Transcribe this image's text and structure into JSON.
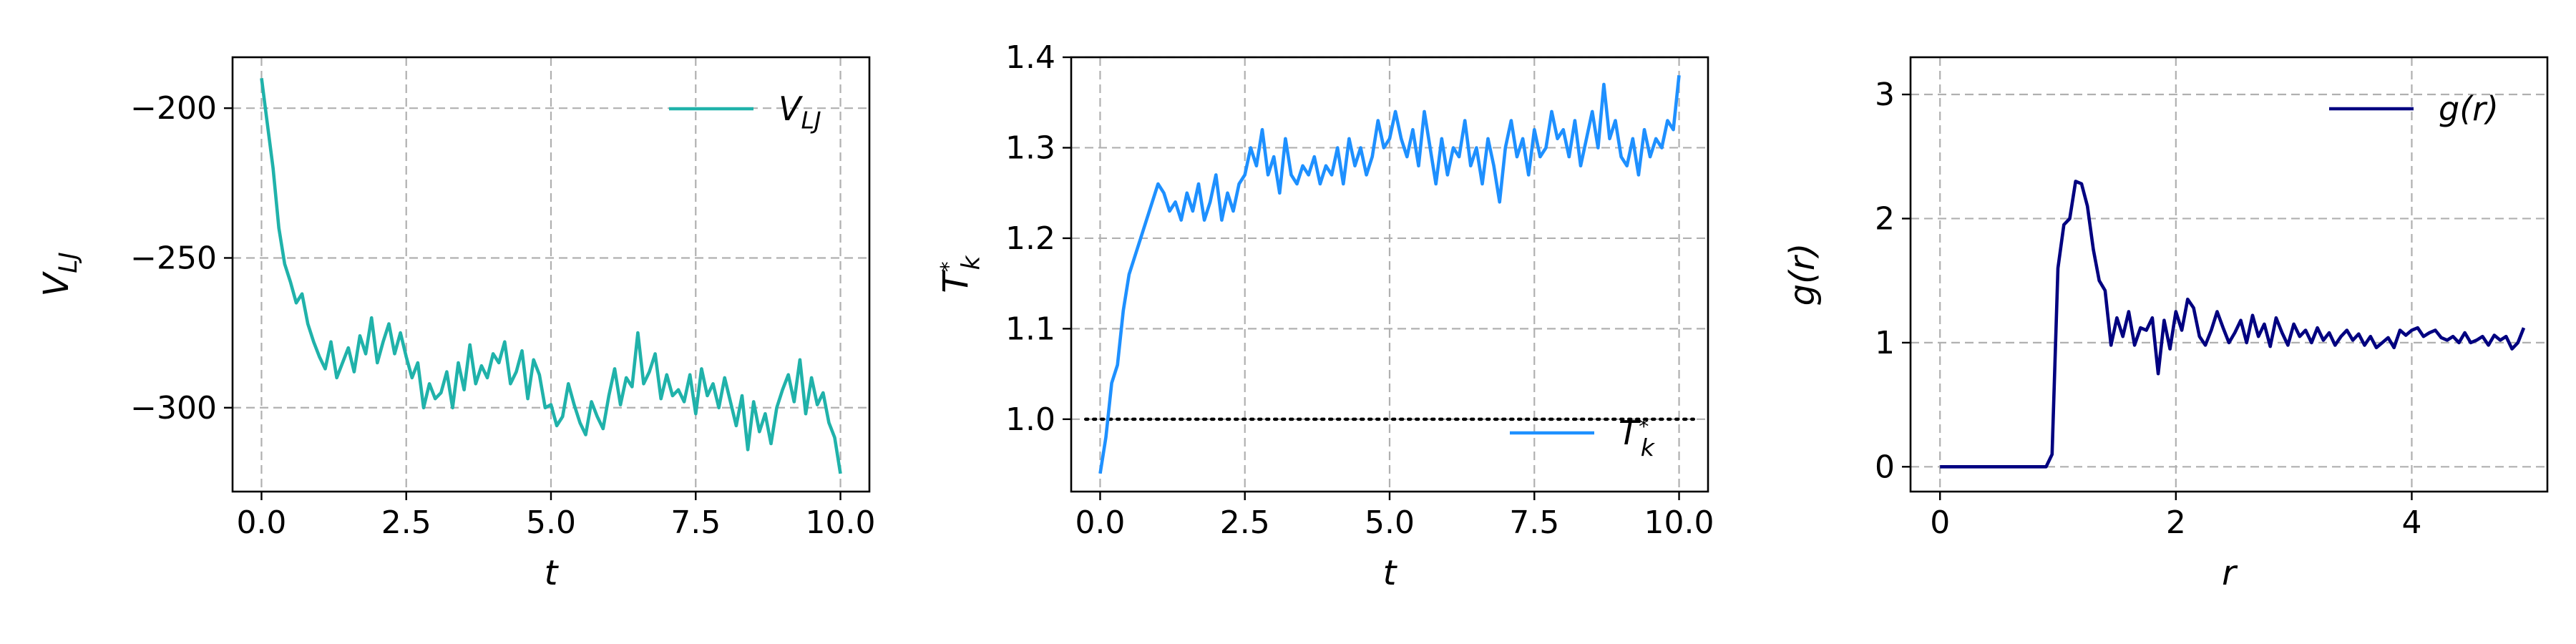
{
  "chart_data": [
    {
      "type": "line",
      "xlabel": "t",
      "ylabel": "V_LJ",
      "xlim": [
        -0.5,
        10.5
      ],
      "ylim": [
        -328,
        -183
      ],
      "xticks": [
        0.0,
        2.5,
        5.0,
        7.5,
        10.0
      ],
      "xtick_labels": [
        "0.0",
        "2.5",
        "5.0",
        "7.5",
        "10.0"
      ],
      "yticks": [
        -200,
        -250,
        -300
      ],
      "ytick_labels": [
        "−200",
        "−250",
        "−300"
      ],
      "grid": true,
      "legend": "top-right",
      "series": [
        {
          "name": "V_LJ",
          "color": "#20b2aa",
          "x": [
            0.0,
            0.1,
            0.2,
            0.3,
            0.4,
            0.5,
            0.6,
            0.7,
            0.8,
            0.9,
            1.0,
            1.1,
            1.2,
            1.3,
            1.4,
            1.5,
            1.6,
            1.7,
            1.8,
            1.9,
            2.0,
            2.1,
            2.2,
            2.3,
            2.4,
            2.5,
            2.6,
            2.7,
            2.8,
            2.9,
            3.0,
            3.1,
            3.2,
            3.3,
            3.4,
            3.5,
            3.6,
            3.7,
            3.8,
            3.9,
            4.0,
            4.1,
            4.2,
            4.3,
            4.4,
            4.5,
            4.6,
            4.7,
            4.8,
            4.9,
            5.0,
            5.1,
            5.2,
            5.3,
            5.4,
            5.5,
            5.6,
            5.7,
            5.8,
            5.9,
            6.0,
            6.1,
            6.2,
            6.3,
            6.4,
            6.5,
            6.6,
            6.7,
            6.8,
            6.9,
            7.0,
            7.1,
            7.2,
            7.3,
            7.4,
            7.5,
            7.6,
            7.7,
            7.8,
            7.9,
            8.0,
            8.1,
            8.2,
            8.3,
            8.4,
            8.5,
            8.6,
            8.7,
            8.8,
            8.9,
            9.0,
            9.1,
            9.2,
            9.3,
            9.4,
            9.5,
            9.6,
            9.7,
            9.8,
            9.9,
            10.0
          ],
          "values": [
            -190,
            -205,
            -220,
            -240,
            -252,
            -258,
            -265,
            -262,
            -272,
            -278,
            -283,
            -287,
            -278,
            -290,
            -285,
            -280,
            -288,
            -276,
            -282,
            -270,
            -285,
            -278,
            -272,
            -282,
            -275,
            -283,
            -290,
            -285,
            -300,
            -292,
            -297,
            -295,
            -288,
            -300,
            -285,
            -294,
            -279,
            -292,
            -286,
            -290,
            -282,
            -285,
            -278,
            -292,
            -288,
            -281,
            -297,
            -284,
            -289,
            -300,
            -299,
            -306,
            -303,
            -292,
            -299,
            -305,
            -309,
            -298,
            -303,
            -307,
            -296,
            -287,
            -299,
            -290,
            -293,
            -275,
            -292,
            -288,
            -282,
            -297,
            -289,
            -296,
            -294,
            -298,
            -289,
            -302,
            -287,
            -296,
            -292,
            -300,
            -290,
            -298,
            -306,
            -296,
            -314,
            -298,
            -308,
            -302,
            -312,
            -300,
            -294,
            -289,
            -298,
            -284,
            -302,
            -290,
            -299,
            -295,
            -305,
            -310,
            -322
          ]
        }
      ]
    },
    {
      "type": "line",
      "xlabel": "t",
      "ylabel": "T*_k",
      "xlim": [
        -0.5,
        10.5
      ],
      "ylim": [
        0.92,
        1.4
      ],
      "xticks": [
        0.0,
        2.5,
        5.0,
        7.5,
        10.0
      ],
      "xtick_labels": [
        "0.0",
        "2.5",
        "5.0",
        "7.5",
        "10.0"
      ],
      "yticks": [
        1.0,
        1.1,
        1.2,
        1.3,
        1.4
      ],
      "ytick_labels": [
        "1.0",
        "1.1",
        "1.2",
        "1.3",
        "1.4"
      ],
      "grid": true,
      "legend": "lower-right",
      "reference_line": {
        "y": 1.0,
        "xmin": -0.25,
        "xmax": 10.25,
        "style": "dotted",
        "color": "#000000"
      },
      "series": [
        {
          "name": "T*_k",
          "color": "#1e90ff",
          "x": [
            0.0,
            0.1,
            0.2,
            0.3,
            0.4,
            0.5,
            0.6,
            0.7,
            0.8,
            0.9,
            1.0,
            1.1,
            1.2,
            1.3,
            1.4,
            1.5,
            1.6,
            1.7,
            1.8,
            1.9,
            2.0,
            2.1,
            2.2,
            2.3,
            2.4,
            2.5,
            2.6,
            2.7,
            2.8,
            2.9,
            3.0,
            3.1,
            3.2,
            3.3,
            3.4,
            3.5,
            3.6,
            3.7,
            3.8,
            3.9,
            4.0,
            4.1,
            4.2,
            4.3,
            4.4,
            4.5,
            4.6,
            4.7,
            4.8,
            4.9,
            5.0,
            5.1,
            5.2,
            5.3,
            5.4,
            5.5,
            5.6,
            5.7,
            5.8,
            5.9,
            6.0,
            6.1,
            6.2,
            6.3,
            6.4,
            6.5,
            6.6,
            6.7,
            6.8,
            6.9,
            7.0,
            7.1,
            7.2,
            7.3,
            7.4,
            7.5,
            7.6,
            7.7,
            7.8,
            7.9,
            8.0,
            8.1,
            8.2,
            8.3,
            8.4,
            8.5,
            8.6,
            8.7,
            8.8,
            8.9,
            9.0,
            9.1,
            9.2,
            9.3,
            9.4,
            9.5,
            9.6,
            9.7,
            9.8,
            9.9,
            10.0
          ],
          "values": [
            0.94,
            0.98,
            1.04,
            1.06,
            1.12,
            1.16,
            1.18,
            1.2,
            1.22,
            1.24,
            1.26,
            1.25,
            1.23,
            1.24,
            1.22,
            1.25,
            1.23,
            1.26,
            1.22,
            1.24,
            1.27,
            1.22,
            1.25,
            1.23,
            1.26,
            1.27,
            1.3,
            1.28,
            1.32,
            1.27,
            1.29,
            1.25,
            1.31,
            1.27,
            1.26,
            1.28,
            1.27,
            1.29,
            1.26,
            1.28,
            1.27,
            1.3,
            1.26,
            1.31,
            1.28,
            1.3,
            1.27,
            1.29,
            1.33,
            1.3,
            1.31,
            1.34,
            1.31,
            1.29,
            1.32,
            1.28,
            1.34,
            1.3,
            1.26,
            1.31,
            1.27,
            1.3,
            1.29,
            1.33,
            1.28,
            1.3,
            1.26,
            1.31,
            1.28,
            1.24,
            1.3,
            1.33,
            1.29,
            1.31,
            1.27,
            1.32,
            1.29,
            1.3,
            1.34,
            1.31,
            1.32,
            1.29,
            1.33,
            1.28,
            1.31,
            1.34,
            1.3,
            1.37,
            1.31,
            1.33,
            1.29,
            1.28,
            1.31,
            1.27,
            1.32,
            1.29,
            1.31,
            1.3,
            1.33,
            1.32,
            1.38
          ]
        }
      ]
    },
    {
      "type": "line",
      "xlabel": "r",
      "ylabel": "g(r)",
      "xlim": [
        -0.25,
        5.15
      ],
      "ylim": [
        -0.2,
        3.3
      ],
      "xticks": [
        0,
        2,
        4
      ],
      "xtick_labels": [
        "0",
        "2",
        "4"
      ],
      "yticks": [
        0,
        1,
        2,
        3
      ],
      "ytick_labels": [
        "0",
        "1",
        "2",
        "3"
      ],
      "grid": true,
      "legend": "top-right",
      "series": [
        {
          "name": "g(r)",
          "color": "#000080",
          "x": [
            0.0,
            0.5,
            0.9,
            0.95,
            1.0,
            1.05,
            1.1,
            1.15,
            1.2,
            1.25,
            1.3,
            1.35,
            1.4,
            1.45,
            1.5,
            1.55,
            1.6,
            1.65,
            1.7,
            1.75,
            1.8,
            1.85,
            1.9,
            1.95,
            2.0,
            2.05,
            2.1,
            2.15,
            2.2,
            2.25,
            2.3,
            2.35,
            2.4,
            2.45,
            2.5,
            2.55,
            2.6,
            2.65,
            2.7,
            2.75,
            2.8,
            2.85,
            2.9,
            2.95,
            3.0,
            3.05,
            3.1,
            3.15,
            3.2,
            3.25,
            3.3,
            3.35,
            3.4,
            3.45,
            3.5,
            3.55,
            3.6,
            3.65,
            3.7,
            3.75,
            3.8,
            3.85,
            3.9,
            3.95,
            4.0,
            4.05,
            4.1,
            4.15,
            4.2,
            4.25,
            4.3,
            4.35,
            4.4,
            4.45,
            4.5,
            4.55,
            4.6,
            4.65,
            4.7,
            4.75,
            4.8,
            4.85,
            4.9,
            4.95
          ],
          "values": [
            0,
            0,
            0,
            0.1,
            1.6,
            1.95,
            2.0,
            2.3,
            2.28,
            2.1,
            1.75,
            1.5,
            1.42,
            0.98,
            1.2,
            1.05,
            1.25,
            0.98,
            1.12,
            1.1,
            1.2,
            0.75,
            1.18,
            0.95,
            1.25,
            1.1,
            1.35,
            1.28,
            1.05,
            0.98,
            1.1,
            1.25,
            1.12,
            1.0,
            1.08,
            1.18,
            1.0,
            1.22,
            1.05,
            1.15,
            0.97,
            1.2,
            1.08,
            0.98,
            1.15,
            1.05,
            1.1,
            1.0,
            1.12,
            1.02,
            1.08,
            0.98,
            1.05,
            1.1,
            1.02,
            1.07,
            0.98,
            1.05,
            0.96,
            1.0,
            1.04,
            0.96,
            1.1,
            1.06,
            1.1,
            1.12,
            1.05,
            1.08,
            1.1,
            1.04,
            1.02,
            1.05,
            1.0,
            1.08,
            1.0,
            1.02,
            1.05,
            0.98,
            1.06,
            1.02,
            1.05,
            0.95,
            1.0,
            1.12
          ]
        }
      ]
    }
  ]
}
